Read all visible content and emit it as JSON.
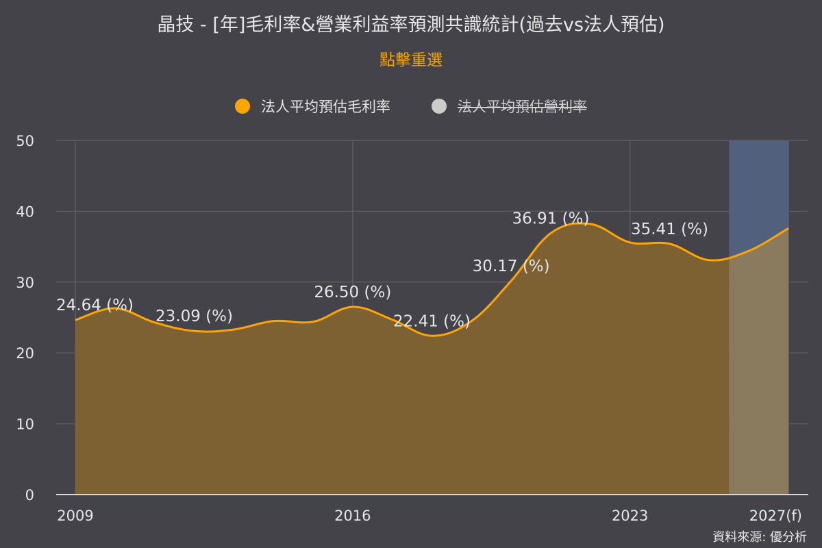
{
  "title": "晶技 - [年]毛利率&營業利益率預測共識統計(過去vs法人預估)",
  "reset_label": "點擊重選",
  "source": "資料來源: 優分析",
  "colors": {
    "background": "#444349",
    "gross_line": "#ffa500",
    "gross_fill": "#7d6133",
    "forecast_fill": "#8a7a5e",
    "forecast_band": "#51607c",
    "hidden_dot": "#cccccc",
    "grid": "#5c5c63"
  },
  "legend": [
    {
      "label": "法人平均預估毛利率",
      "visible": true,
      "icon": "orange-circle-icon"
    },
    {
      "label": "法人平均預估營利率",
      "visible": false,
      "icon": "gray-circle-icon"
    }
  ],
  "chart_data": {
    "type": "area",
    "x_tick_labels": [
      "2009",
      "2016",
      "2023",
      "2027(f)"
    ],
    "x_tick_positions": [
      0,
      28,
      56,
      72
    ],
    "y_ticks": [
      0,
      10,
      20,
      30,
      40,
      50
    ],
    "ylim": [
      0,
      50
    ],
    "xlim": [
      0,
      72
    ],
    "forecast_start": 66,
    "series": [
      {
        "name": "法人平均預估毛利率",
        "x": [
          0,
          4,
          8,
          12,
          16,
          20,
          24,
          28,
          32,
          36,
          40,
          44,
          48,
          52,
          56,
          60,
          64,
          68,
          72
        ],
        "values": [
          24.64,
          26.3,
          24.3,
          23.09,
          23.3,
          24.5,
          24.4,
          26.5,
          24.7,
          22.41,
          24.5,
          30.17,
          36.91,
          38.2,
          35.6,
          35.41,
          33.1,
          34.4,
          37.6
        ]
      }
    ],
    "data_labels": [
      {
        "x": 0,
        "y": 24.64,
        "text": "24.64 (%)"
      },
      {
        "x": 12,
        "y": 23.09,
        "text": "23.09 (%)"
      },
      {
        "x": 28,
        "y": 26.5,
        "text": "26.50 (%)"
      },
      {
        "x": 36,
        "y": 22.41,
        "text": "22.41 (%)"
      },
      {
        "x": 44,
        "y": 30.17,
        "text": "30.17 (%)"
      },
      {
        "x": 48,
        "y": 36.91,
        "text": "36.91 (%)"
      },
      {
        "x": 60,
        "y": 35.41,
        "text": "35.41 (%)"
      }
    ]
  }
}
